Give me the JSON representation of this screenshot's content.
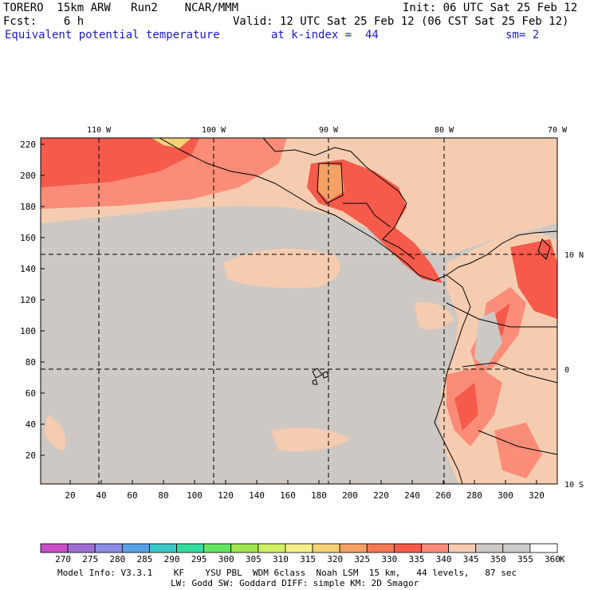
{
  "header": {
    "model": "TORERO  15km ARW   Run2    NCAR/MMM",
    "init": "Init: 06 UTC Sat 25 Feb 12",
    "fcst": "Fcst:    6 h",
    "valid": "Valid: 12 UTC Sat 25 Feb 12 (06 CST Sat 25 Feb 12)",
    "field": "Equivalent potential temperature",
    "level": "at k-index =  44",
    "smoothing": "sm= 2"
  },
  "map": {
    "lon_labels": [
      "110 W",
      "100 W",
      "90 W",
      "80 W",
      "70 W"
    ],
    "lat_labels": [
      "10 N",
      "0",
      "10 S"
    ],
    "y_ticks": [
      "220",
      "200",
      "180",
      "160",
      "140",
      "120",
      "100",
      "80",
      "60",
      "40",
      "20"
    ],
    "x_ticks": [
      "20",
      "40",
      "60",
      "80",
      "100",
      "120",
      "140",
      "160",
      "180",
      "200",
      "220",
      "240",
      "260",
      "280",
      "300",
      "320"
    ]
  },
  "colorbar": {
    "labels": [
      "270",
      "275",
      "280",
      "285",
      "290",
      "295",
      "300",
      "305",
      "310",
      "315",
      "320",
      "325",
      "330",
      "335",
      "340",
      "345",
      "350",
      "355",
      "360"
    ],
    "unit": "K",
    "colors": [
      "#c850c8",
      "#a06ed2",
      "#8c8ce6",
      "#5aa0e6",
      "#3cc8c8",
      "#32dca0",
      "#64e664",
      "#a0e650",
      "#d2f064",
      "#f5f08c",
      "#f5d278",
      "#f5a064",
      "#f57855",
      "#f55a4b",
      "#fa8c78",
      "#f5ccb0",
      "#cdc8c4",
      "#cccccc",
      "#ffffff"
    ]
  },
  "footer": {
    "line1": "Model Info: V3.3.1    KF    YSU PBL  WDM 6class  Noah LSM  15 km,   44 levels,   87 sec",
    "line2": "LW: Godd SW: Goddard DIFF: simple KM: 2D Smagor"
  }
}
